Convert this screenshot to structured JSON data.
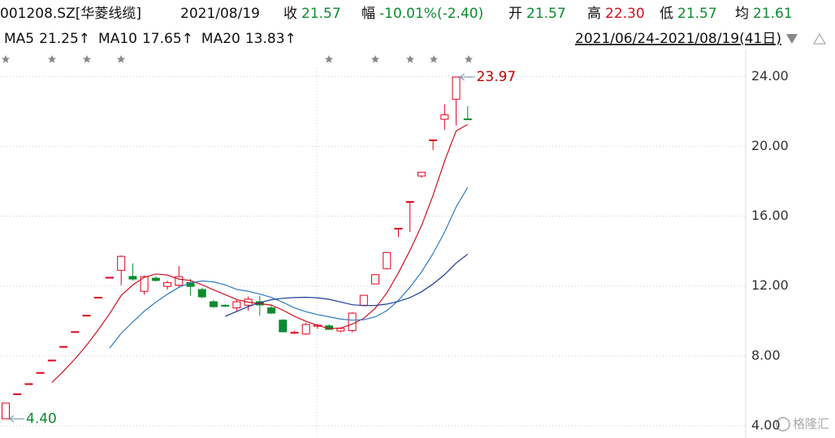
{
  "chart_data": {
    "type": "candlestick",
    "info": {
      "code": "001208.SZ[华菱线缆]",
      "date": "2021/08/19",
      "close_label": "收",
      "close": "21.57",
      "change_label": "幅",
      "change": "-10.01%(-2.40)",
      "open_label": "开",
      "open": "21.57",
      "high_label": "高",
      "high": "22.30",
      "low_label": "低",
      "low": "21.57",
      "avg_label": "均",
      "avg": "21.61"
    },
    "range": "2021/06/24-2021/08/19(41日)",
    "open": [
      4.4,
      5.83,
      6.41,
      7.05,
      7.76,
      8.54,
      9.39,
      10.33,
      11.36,
      12.5,
      12.9,
      12.55,
      11.7,
      12.45,
      11.98,
      12.05,
      12.2,
      11.8,
      11.1,
      10.9,
      10.75,
      10.9,
      11.1,
      10.75,
      10.05,
      9.3,
      9.25,
      9.7,
      9.72,
      9.43,
      9.45,
      10.9,
      12.12,
      13.0,
      15.31,
      16.84,
      18.3,
      20.37,
      21.55,
      22.7,
      21.57
    ],
    "high": [
      5.3,
      5.83,
      6.41,
      7.05,
      7.76,
      8.54,
      9.39,
      10.33,
      11.36,
      12.5,
      13.75,
      13.3,
      12.6,
      12.55,
      12.3,
      13.14,
      12.4,
      11.9,
      11.2,
      10.95,
      11.2,
      11.4,
      11.45,
      10.95,
      10.1,
      9.45,
      9.9,
      9.85,
      9.8,
      9.6,
      10.5,
      11.5,
      12.65,
      13.92,
      15.31,
      16.84,
      18.52,
      20.37,
      22.41,
      23.97,
      22.3
    ],
    "low": [
      4.4,
      5.83,
      6.41,
      7.05,
      7.76,
      8.54,
      9.39,
      10.33,
      11.36,
      12.5,
      12.05,
      12.3,
      11.5,
      12.25,
      11.8,
      11.9,
      11.45,
      11.3,
      10.75,
      10.8,
      10.55,
      10.6,
      10.3,
      10.4,
      9.35,
      9.25,
      9.2,
      9.55,
      9.5,
      9.35,
      9.35,
      10.85,
      12.1,
      12.95,
      14.8,
      15.1,
      18.2,
      19.78,
      20.95,
      21.2,
      21.57
    ],
    "close": [
      5.3,
      5.83,
      6.41,
      7.05,
      7.76,
      8.54,
      9.39,
      10.33,
      11.36,
      12.5,
      13.7,
      12.4,
      12.54,
      12.32,
      12.2,
      12.54,
      11.98,
      11.38,
      10.82,
      10.85,
      11.1,
      11.25,
      10.92,
      10.45,
      9.38,
      9.35,
      9.8,
      9.76,
      9.52,
      9.57,
      10.45,
      11.47,
      12.65,
      13.92,
      15.31,
      16.84,
      18.52,
      20.37,
      21.8,
      23.97,
      21.57
    ],
    "up_color": "#e4001b",
    "down_color": "#0b8b30",
    "series": [
      {
        "name": "MA5",
        "value_label": "21.25↑",
        "color": "#d1121e",
        "values": [
          null,
          null,
          null,
          null,
          6.47,
          7.12,
          7.83,
          8.61,
          9.48,
          10.42,
          11.46,
          12.06,
          12.5,
          12.69,
          12.63,
          12.4,
          12.32,
          12.08,
          11.78,
          11.51,
          11.23,
          11.08,
          10.99,
          10.91,
          10.62,
          10.27,
          9.98,
          9.75,
          9.56,
          9.6,
          9.82,
          10.15,
          10.73,
          11.61,
          12.76,
          14.04,
          15.45,
          17.19,
          19.16,
          20.89,
          21.25
        ]
      },
      {
        "name": "MA10",
        "value_label": "17.65↑",
        "color": "#2e7bc4",
        "values": [
          null,
          null,
          null,
          null,
          null,
          null,
          null,
          null,
          null,
          8.45,
          9.29,
          9.94,
          10.56,
          11.08,
          11.53,
          11.93,
          12.19,
          12.29,
          12.24,
          12.07,
          11.81,
          11.7,
          11.54,
          11.35,
          11.07,
          10.75,
          10.53,
          10.37,
          10.24,
          10.11,
          10.05,
          10.07,
          10.24,
          10.59,
          11.18,
          11.93,
          12.8,
          13.86,
          15.09,
          16.53,
          17.65
        ]
      },
      {
        "name": "MA20",
        "value_label": "13.83↑",
        "color": "#1a3d9a",
        "values": [
          null,
          null,
          null,
          null,
          null,
          null,
          null,
          null,
          null,
          null,
          null,
          null,
          null,
          null,
          null,
          null,
          null,
          null,
          null,
          10.26,
          10.55,
          10.82,
          11.05,
          11.22,
          11.3,
          11.34,
          11.36,
          11.33,
          11.24,
          11.09,
          10.93,
          10.88,
          10.89,
          10.97,
          11.12,
          11.34,
          11.67,
          12.12,
          12.66,
          13.32,
          13.83
        ]
      }
    ],
    "ylim": [
      3.3,
      25.5
    ],
    "yticks": [
      {
        "value": 4,
        "label": "4.00"
      },
      {
        "value": 8,
        "label": "8.00"
      },
      {
        "value": 12,
        "label": "12.00"
      },
      {
        "value": 16,
        "label": "16.00"
      },
      {
        "value": 20,
        "label": "20.00"
      },
      {
        "value": 24,
        "label": "24.00"
      }
    ],
    "grid": true,
    "annotations": [
      {
        "value": 23.97,
        "label": "23.97",
        "color": "#c00000"
      },
      {
        "value": 4.4,
        "label": "4.40",
        "color": "#0b8b30"
      }
    ],
    "watermark": "格隆汇"
  }
}
